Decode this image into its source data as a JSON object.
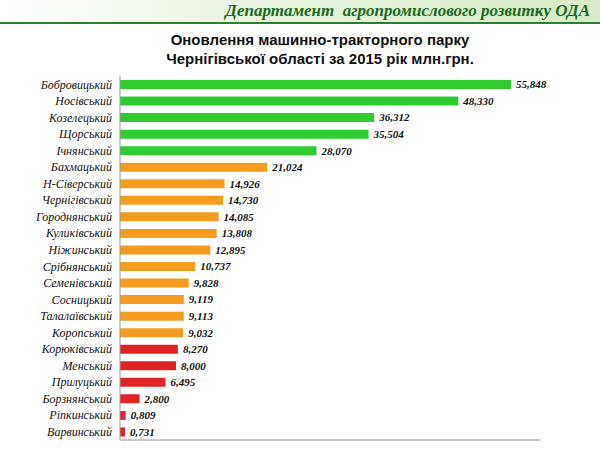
{
  "header": "Департамент  агропромислового розвитку ОДА",
  "chart_data": {
    "type": "bar",
    "orientation": "horizontal",
    "title": "Оновлення машинно-тракторного парку\nЧернігівської області за 2015 рік млн.грн.",
    "categories": [
      "Бобровицький",
      "Носівський",
      "Козелецький",
      "Щорський",
      "Ічнянський",
      "Бахмацький",
      "Н-Сіверський",
      "Чернігівський",
      "Городнянський",
      "Куликівський",
      "Ніжинський",
      "Срібнянський",
      "Семенівський",
      "Сосницький",
      "Талалаївський",
      "Коропський",
      "Корюківський",
      "Менський",
      "Прилуцький",
      "Борзнянський",
      "Ріпкинський",
      "Варвинський"
    ],
    "values": [
      55.848,
      48.33,
      36.312,
      35.504,
      28.07,
      21.024,
      14.926,
      14.73,
      14.085,
      13.808,
      12.895,
      10.737,
      9.828,
      9.119,
      9.113,
      9.032,
      8.27,
      8.0,
      6.495,
      2.8,
      0.809,
      0.731
    ],
    "value_labels": [
      "55,848",
      "48,330",
      "36,312",
      "35,504",
      "28,070",
      "21,024",
      "14,926",
      "14,730",
      "14,085",
      "13,808",
      "12,895",
      "10,737",
      "9,828",
      "9,119",
      "9,113",
      "9,032",
      "8,270",
      "8,000",
      "6,495",
      "2,800",
      "0,809",
      "0,731"
    ],
    "colors": [
      "#2ecc2e",
      "#2ecc2e",
      "#2ecc2e",
      "#2ecc2e",
      "#2ecc2e",
      "#f39c1f",
      "#f39c1f",
      "#f39c1f",
      "#f39c1f",
      "#f39c1f",
      "#f39c1f",
      "#f39c1f",
      "#f39c1f",
      "#f39c1f",
      "#f39c1f",
      "#f39c1f",
      "#e02424",
      "#e02424",
      "#e02424",
      "#e02424",
      "#e02424",
      "#e02424"
    ],
    "xlim": [
      0,
      60
    ],
    "xticks": [],
    "data_labels": true,
    "tick_labels": "y",
    "grid": false
  }
}
